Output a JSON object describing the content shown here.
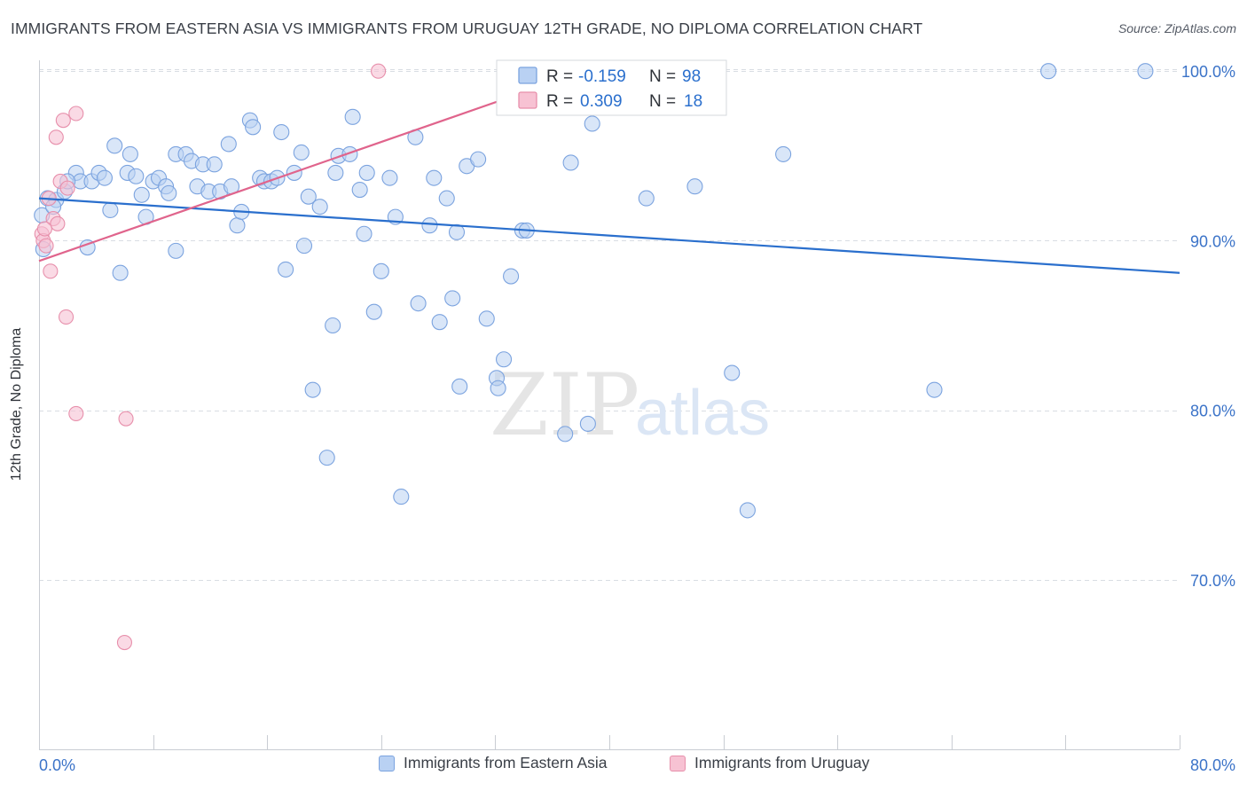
{
  "header": {
    "title": "IMMIGRANTS FROM EASTERN ASIA VS IMMIGRANTS FROM URUGUAY 12TH GRADE, NO DIPLOMA CORRELATION CHART",
    "source": "Source: ZipAtlas.com"
  },
  "watermark": {
    "zip": "ZIP",
    "atlas": "atlas"
  },
  "colors": {
    "blue_fill": "#b9d1f3",
    "blue_stroke": "#7ba3df",
    "blue_line": "#2a6fcd",
    "pink_fill": "#f7c2d3",
    "pink_stroke": "#e78fab",
    "pink_line": "#e0648c",
    "tick_text": "#3b73c8",
    "grid": "#d9dde3"
  },
  "legend_box": {
    "rows": [
      {
        "r_label": "R = ",
        "r_value": "-0.159",
        "n_label": "N = ",
        "n_value": "98"
      },
      {
        "r_label": "R = ",
        "r_value": "0.309",
        "n_label": "N = ",
        "n_value": "18"
      }
    ]
  },
  "chart_data": {
    "type": "scatter",
    "title": "IMMIGRANTS FROM EASTERN ASIA VS IMMIGRANTS FROM URUGUAY 12TH GRADE, NO DIPLOMA CORRELATION CHART",
    "xlabel": "",
    "ylabel": "12th Grade, No Diploma",
    "xlim": [
      0,
      80
    ],
    "ylim": [
      60,
      102
    ],
    "x_tick_labels": [
      "0.0%",
      "80.0%"
    ],
    "y_ticks": [
      70,
      80,
      90,
      100
    ],
    "y_tick_labels": [
      "70.0%",
      "80.0%",
      "90.0%",
      "100.0%"
    ],
    "grid": true,
    "legend_position": "bottom",
    "series": [
      {
        "name": "Immigrants from Eastern Asia",
        "color": "#b9d1f3",
        "r": -0.159,
        "n": 98,
        "trend": {
          "x": [
            0,
            80
          ],
          "y": [
            92.5,
            88.1
          ]
        },
        "points": [
          [
            0.2,
            91.5
          ],
          [
            0.3,
            89.5
          ],
          [
            0.6,
            92.5
          ],
          [
            1.2,
            92.4
          ],
          [
            1.8,
            92.9
          ],
          [
            2.6,
            94.0
          ],
          [
            2.9,
            93.5
          ],
          [
            3.4,
            89.6
          ],
          [
            3.7,
            93.5
          ],
          [
            4.2,
            94.0
          ],
          [
            4.6,
            93.7
          ],
          [
            5.0,
            91.8
          ],
          [
            5.3,
            95.6
          ],
          [
            5.7,
            88.1
          ],
          [
            6.2,
            94.0
          ],
          [
            6.4,
            95.1
          ],
          [
            6.8,
            93.8
          ],
          [
            7.2,
            92.7
          ],
          [
            7.5,
            91.4
          ],
          [
            8.0,
            93.5
          ],
          [
            8.4,
            93.7
          ],
          [
            8.9,
            93.2
          ],
          [
            9.1,
            92.8
          ],
          [
            9.6,
            89.4
          ],
          [
            9.6,
            95.1
          ],
          [
            10.3,
            95.1
          ],
          [
            10.7,
            94.7
          ],
          [
            11.1,
            93.2
          ],
          [
            11.5,
            94.5
          ],
          [
            11.9,
            92.9
          ],
          [
            12.3,
            94.5
          ],
          [
            12.7,
            92.9
          ],
          [
            13.3,
            95.7
          ],
          [
            13.5,
            93.2
          ],
          [
            13.9,
            90.9
          ],
          [
            14.2,
            91.7
          ],
          [
            14.8,
            97.1
          ],
          [
            15.0,
            96.7
          ],
          [
            15.5,
            93.7
          ],
          [
            15.8,
            93.5
          ],
          [
            16.3,
            93.5
          ],
          [
            16.7,
            93.7
          ],
          [
            17.0,
            96.4
          ],
          [
            17.3,
            88.3
          ],
          [
            17.9,
            94.0
          ],
          [
            18.4,
            95.2
          ],
          [
            18.6,
            89.7
          ],
          [
            18.9,
            92.6
          ],
          [
            19.2,
            81.2
          ],
          [
            19.7,
            92.0
          ],
          [
            20.2,
            77.2
          ],
          [
            20.6,
            85.0
          ],
          [
            20.8,
            94.0
          ],
          [
            21.0,
            95.0
          ],
          [
            21.8,
            95.1
          ],
          [
            22.0,
            97.3
          ],
          [
            22.5,
            93.0
          ],
          [
            22.8,
            90.4
          ],
          [
            23.0,
            94.0
          ],
          [
            23.5,
            85.8
          ],
          [
            24.0,
            88.2
          ],
          [
            24.6,
            93.7
          ],
          [
            25.0,
            91.4
          ],
          [
            25.4,
            74.9
          ],
          [
            26.4,
            96.1
          ],
          [
            26.6,
            86.3
          ],
          [
            27.4,
            90.9
          ],
          [
            27.7,
            93.7
          ],
          [
            28.1,
            85.2
          ],
          [
            28.6,
            92.5
          ],
          [
            29.0,
            86.6
          ],
          [
            29.3,
            90.5
          ],
          [
            29.5,
            81.4
          ],
          [
            30.0,
            94.4
          ],
          [
            30.8,
            94.8
          ],
          [
            31.4,
            85.4
          ],
          [
            32.1,
            81.9
          ],
          [
            32.2,
            81.3
          ],
          [
            32.6,
            83.0
          ],
          [
            33.1,
            87.9
          ],
          [
            33.9,
            90.6
          ],
          [
            34.2,
            90.6
          ],
          [
            36.9,
            78.6
          ],
          [
            37.3,
            94.6
          ],
          [
            38.5,
            79.2
          ],
          [
            38.8,
            96.9
          ],
          [
            42.6,
            92.5
          ],
          [
            46.0,
            93.2
          ],
          [
            48.6,
            82.2
          ],
          [
            49.7,
            74.1
          ],
          [
            52.2,
            95.1
          ],
          [
            62.8,
            81.2
          ],
          [
            70.8,
            100.0
          ],
          [
            77.6,
            100.0
          ],
          [
            38.0,
            100.0
          ],
          [
            40.5,
            100.0
          ],
          [
            1.0,
            92.0
          ],
          [
            2.0,
            93.5
          ]
        ]
      },
      {
        "name": "Immigrants from Uruguay",
        "color": "#f7c2d3",
        "r": 0.309,
        "n": 18,
        "trend": {
          "x": [
            0,
            40
          ],
          "y": [
            88.8,
            100.5
          ]
        },
        "points": [
          [
            0.2,
            90.4
          ],
          [
            0.3,
            90.0
          ],
          [
            0.5,
            89.7
          ],
          [
            0.8,
            88.2
          ],
          [
            1.0,
            91.3
          ],
          [
            1.2,
            96.1
          ],
          [
            1.3,
            91.0
          ],
          [
            1.5,
            93.5
          ],
          [
            1.7,
            97.1
          ],
          [
            2.0,
            93.1
          ],
          [
            2.6,
            97.5
          ],
          [
            2.6,
            79.8
          ],
          [
            1.9,
            85.5
          ],
          [
            6.1,
            79.5
          ],
          [
            6.0,
            66.3
          ],
          [
            23.8,
            100.0
          ],
          [
            0.4,
            90.7
          ],
          [
            0.7,
            92.5
          ]
        ]
      }
    ]
  }
}
